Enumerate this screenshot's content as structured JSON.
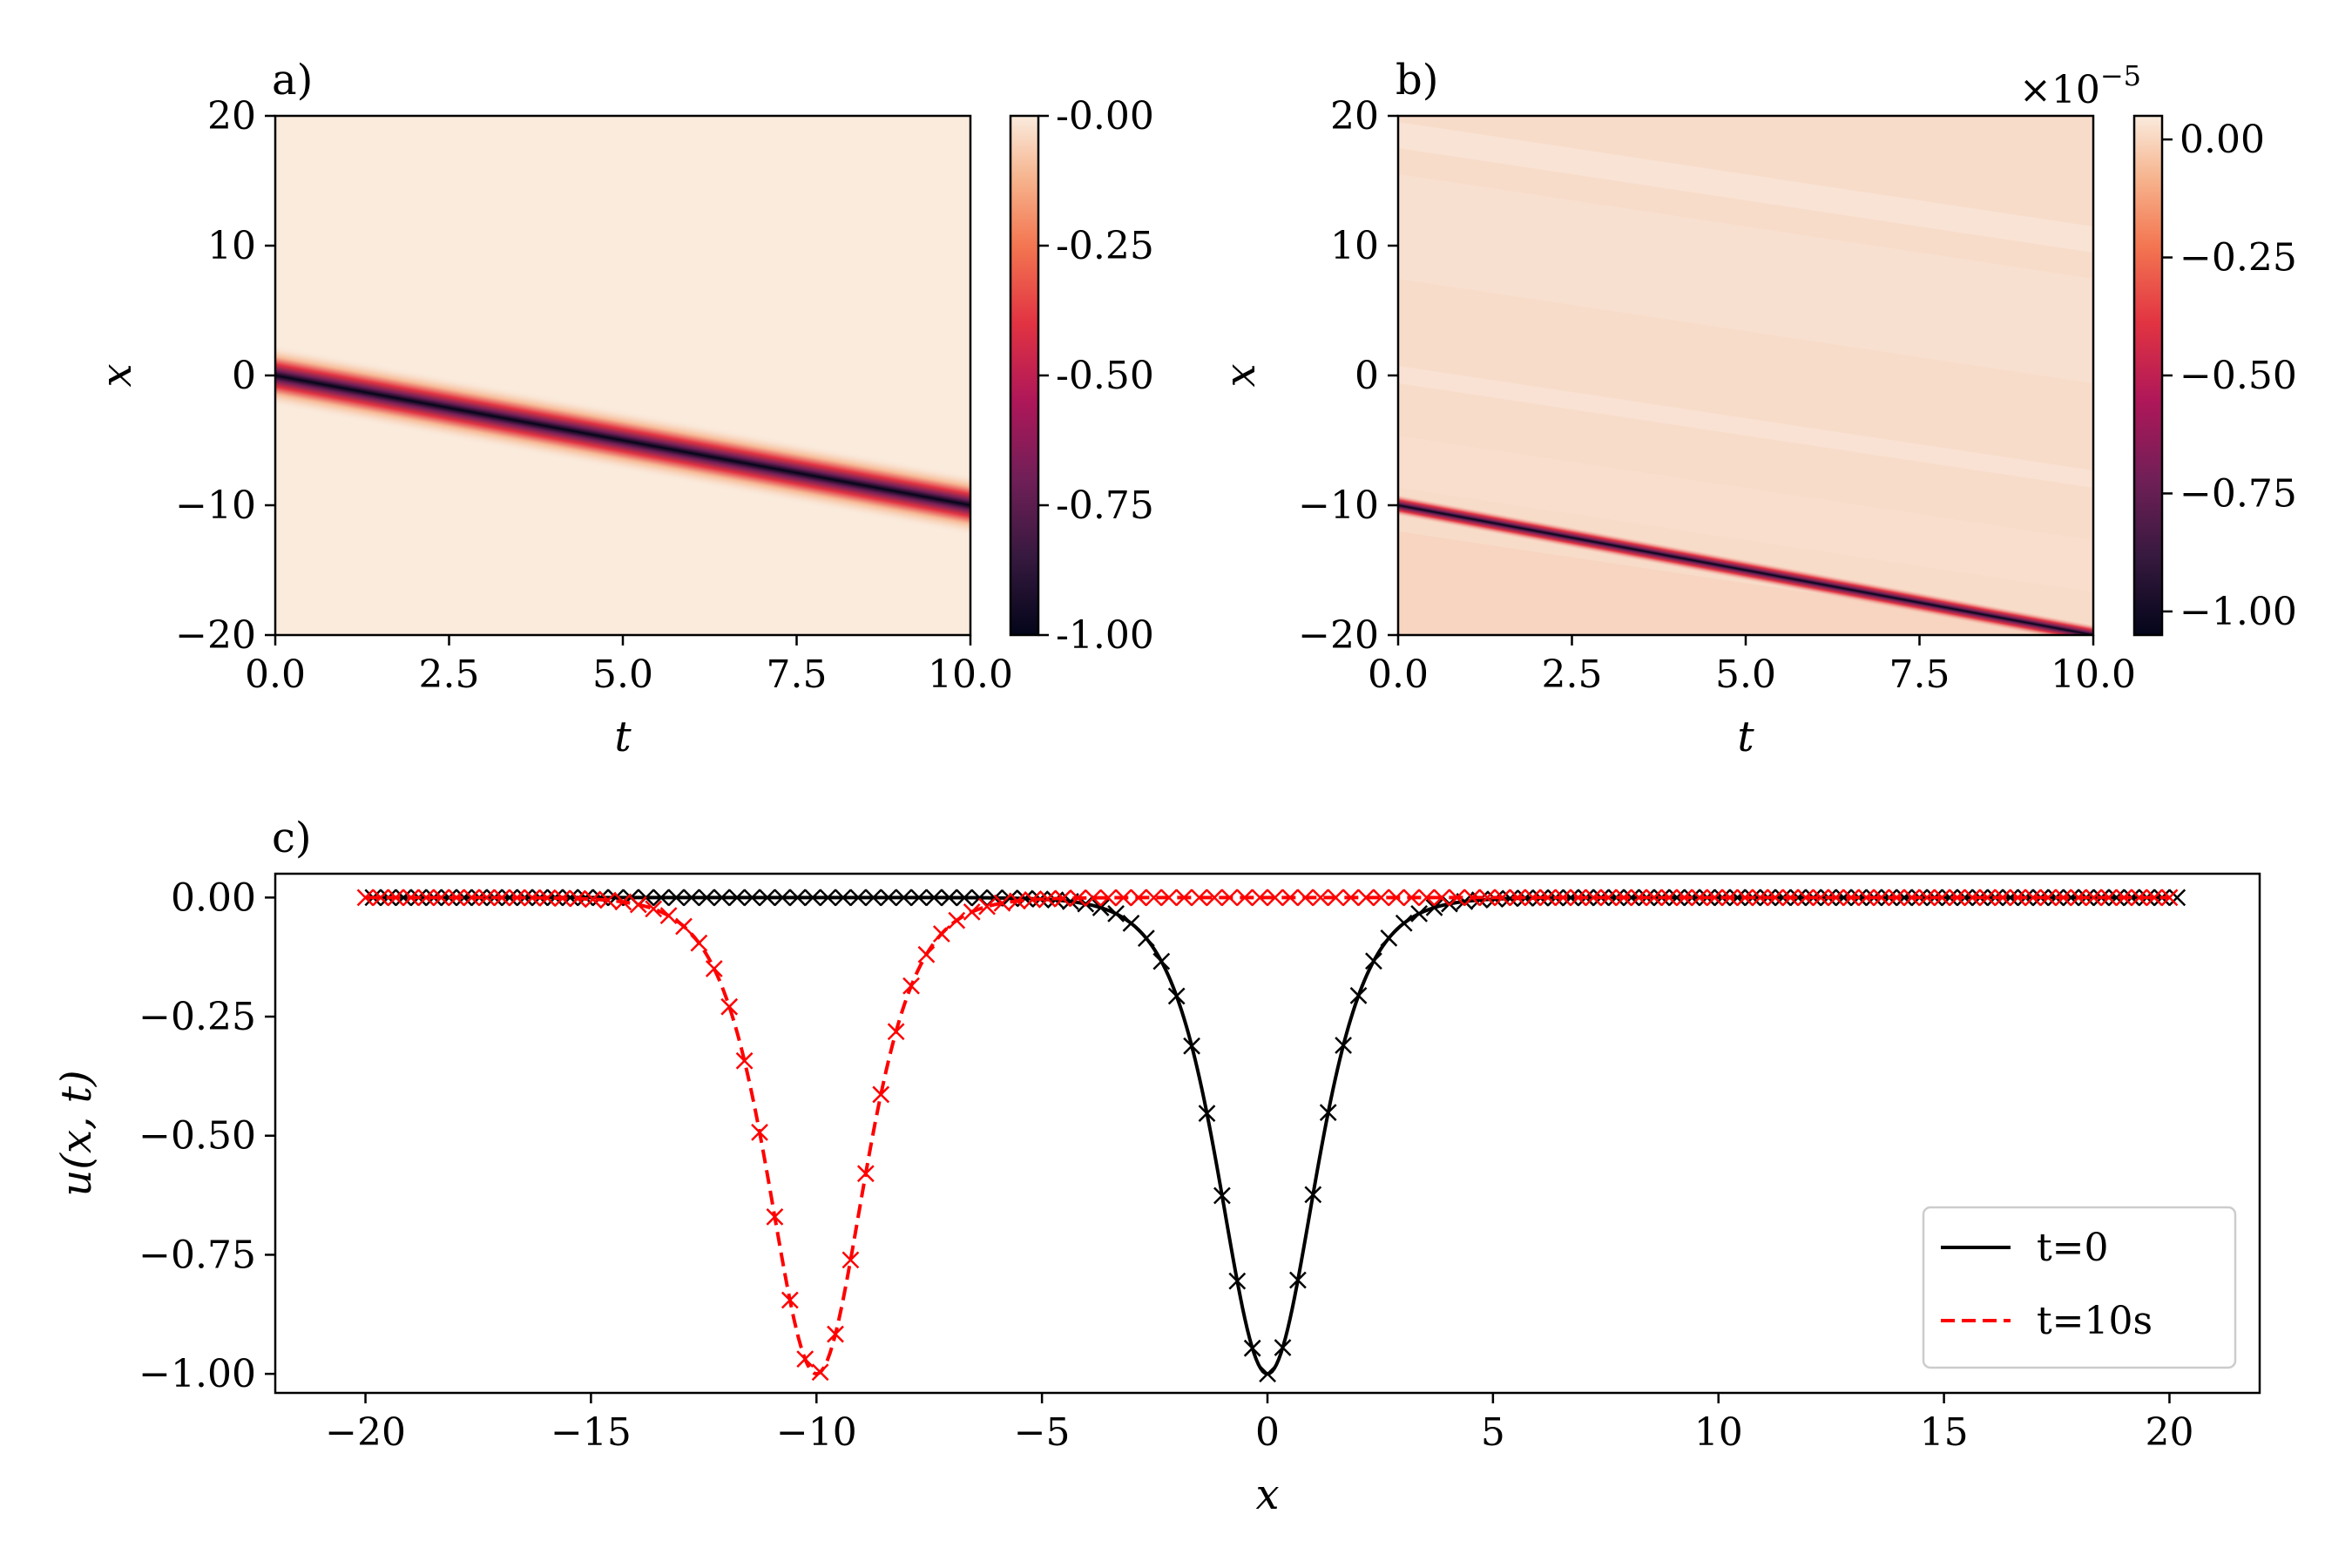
{
  "chart_data": [
    {
      "panel": "a)",
      "type": "heatmap",
      "xlabel": "t",
      "ylabel": "x",
      "xlim": [
        0,
        10
      ],
      "ylim": [
        -20,
        20
      ],
      "xticks": [
        "0.0",
        "2.5",
        "5.0",
        "7.5",
        "10.0"
      ],
      "yticks": [
        "20",
        "10",
        "0",
        "−10",
        "−20"
      ],
      "colorbar": {
        "range": [
          -1.0,
          0.0
        ],
        "ticks": [
          "-0.00",
          "-0.25",
          "-0.50",
          "-0.75",
          "-1.00"
        ]
      },
      "soliton": {
        "x_at_t0": 0,
        "x_at_t10": -10,
        "min_value": -1.0
      }
    },
    {
      "panel": "b)",
      "type": "heatmap",
      "xlabel": "t",
      "ylabel": "x",
      "xlim": [
        0,
        10
      ],
      "ylim": [
        -20,
        20
      ],
      "xticks": [
        "0.0",
        "2.5",
        "5.0",
        "7.5",
        "10.0"
      ],
      "yticks": [
        "20",
        "10",
        "0",
        "−10",
        "−20"
      ],
      "colorbar": {
        "range": [
          -1.05,
          0.05
        ],
        "scale_base": "×10",
        "scale_exp": "−5",
        "ticks": [
          "0.00",
          "−0.25",
          "−0.50",
          "−0.75",
          "−1.00"
        ]
      },
      "soliton": {
        "x_at_t0": -10,
        "x_at_t10": -20,
        "min_value": -1.0
      }
    },
    {
      "panel": "c)",
      "type": "line",
      "xlabel": "x",
      "ylabel": "u(x, t)",
      "xlim": [
        -22,
        22
      ],
      "ylim": [
        -1.04,
        0.05
      ],
      "xticks": [
        "−20",
        "−15",
        "−10",
        "−5",
        "0",
        "5",
        "10",
        "15",
        "20"
      ],
      "yticks": [
        "0.00",
        "−0.25",
        "−0.50",
        "−0.75",
        "−1.00"
      ],
      "series": [
        {
          "name": "t=0",
          "center": 0,
          "amplitude": -1.0,
          "color": "#000000",
          "dash": "solid",
          "marker": "x"
        },
        {
          "name": "t=10s",
          "center": -10,
          "amplitude": -1.0,
          "color": "#ff0000",
          "dash": "dashed",
          "marker": "x"
        }
      ],
      "x_range": [
        -20,
        20
      ],
      "marker_count": 120,
      "legend": "lower-right"
    }
  ]
}
